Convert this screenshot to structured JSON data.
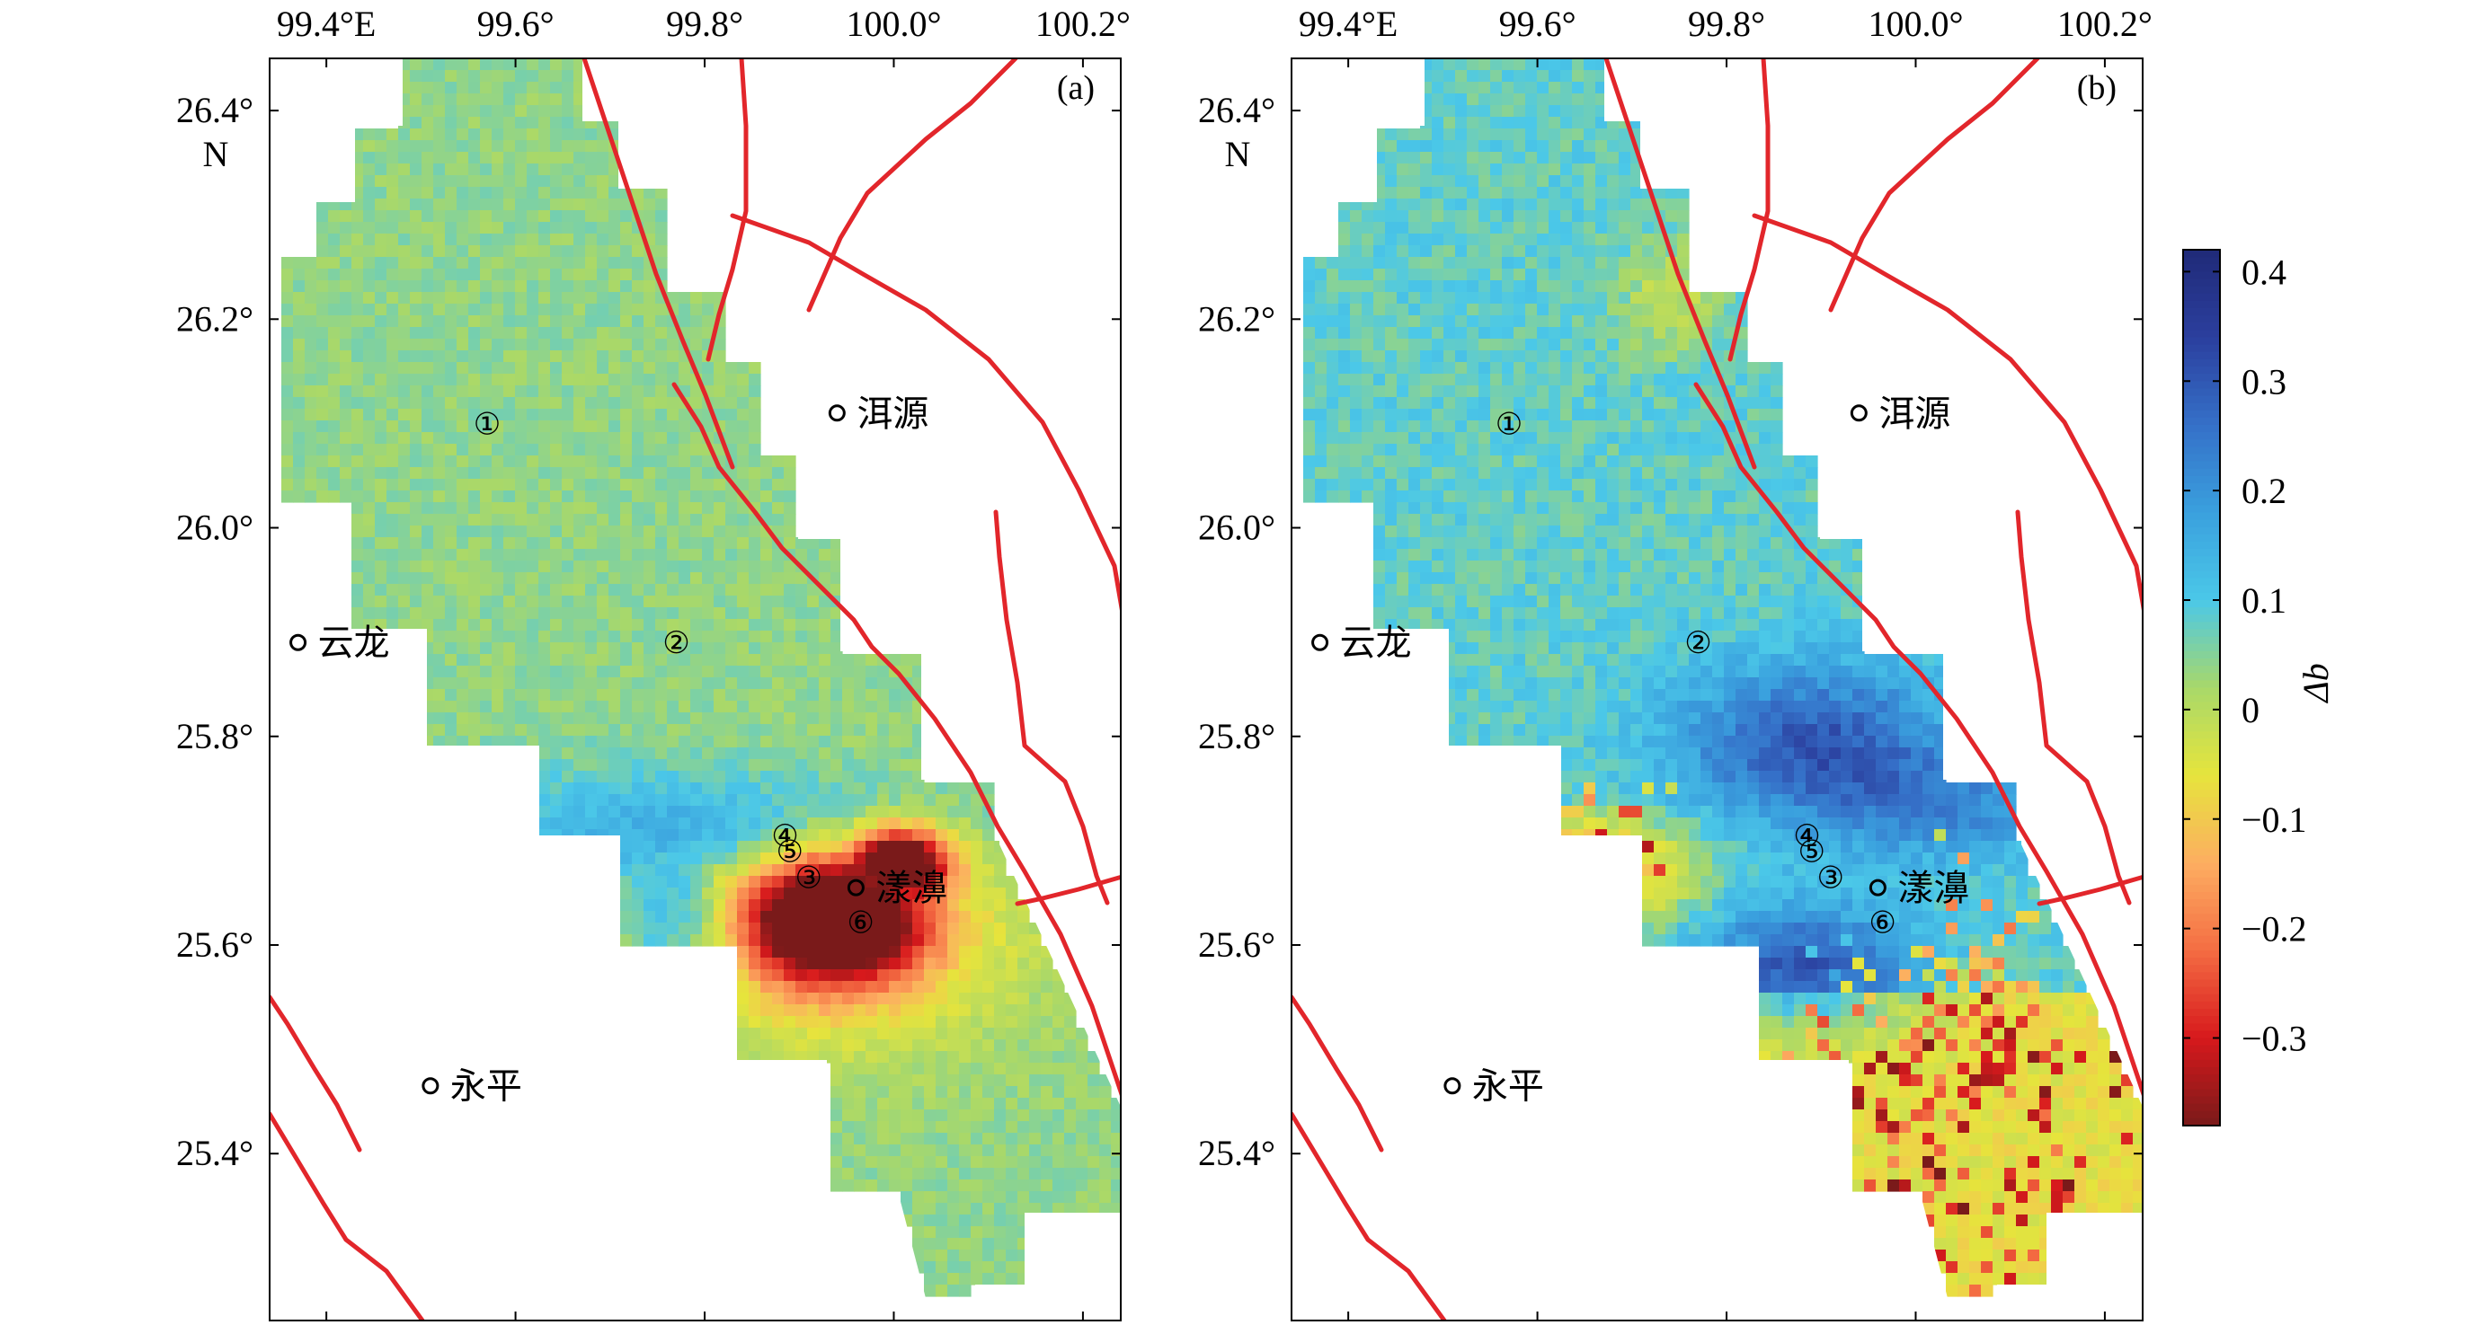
{
  "colorbar": {
    "title": "Δb",
    "ticks": [
      {
        "value": 0.4,
        "label": "0.4"
      },
      {
        "value": 0.3,
        "label": "0.3"
      },
      {
        "value": 0.2,
        "label": "0.2"
      },
      {
        "value": 0.1,
        "label": "0.1"
      },
      {
        "value": 0.0,
        "label": "0"
      },
      {
        "value": -0.1,
        "label": "−0.1"
      },
      {
        "value": -0.2,
        "label": "−0.2"
      },
      {
        "value": -0.3,
        "label": "−0.3"
      }
    ],
    "range": [
      -0.38,
      0.42
    ],
    "colors": [
      "#7a1a1a",
      "#d7191c",
      "#f46d43",
      "#fdae61",
      "#e6e43c",
      "#a8d86a",
      "#4bc8e8",
      "#3aa0de",
      "#3570c8",
      "#2b3f9e",
      "#1f2a78"
    ]
  },
  "axes": {
    "lon_ticks": [
      {
        "value": 99.4,
        "label": "99.4°E"
      },
      {
        "value": 99.6,
        "label": "99.6°"
      },
      {
        "value": 99.8,
        "label": "99.8°"
      },
      {
        "value": 100.0,
        "label": "100.0°"
      },
      {
        "value": 100.2,
        "label": "100.2°"
      }
    ],
    "lat_ticks": [
      {
        "value": 26.4,
        "label": "26.4°"
      },
      {
        "value": 26.2,
        "label": "26.2°"
      },
      {
        "value": 26.0,
        "label": "26.0°"
      },
      {
        "value": 25.8,
        "label": "25.8°"
      },
      {
        "value": 25.6,
        "label": "25.6°"
      },
      {
        "value": 25.4,
        "label": "25.4°"
      }
    ],
    "lat_unit_label": "N",
    "lon_range": [
      99.34,
      100.24
    ],
    "lat_range": [
      25.24,
      26.45
    ]
  },
  "panels": [
    {
      "id": "a",
      "label": "(a)"
    },
    {
      "id": "b",
      "label": "(b)"
    }
  ],
  "places": [
    {
      "name": "洱源",
      "lon": 99.94,
      "lat": 26.11
    },
    {
      "name": "云龙",
      "lon": 99.37,
      "lat": 25.89
    },
    {
      "name": "漾濞",
      "lon": 99.96,
      "lat": 25.655
    },
    {
      "name": "永平",
      "lon": 99.51,
      "lat": 25.465
    }
  ],
  "zones": [
    {
      "label": "①",
      "lon": 99.57,
      "lat": 26.1
    },
    {
      "label": "②",
      "lon": 99.77,
      "lat": 25.89
    },
    {
      "label": "③",
      "lon": 99.91,
      "lat": 25.665
    },
    {
      "label": "④",
      "lon": 99.885,
      "lat": 25.705
    },
    {
      "label": "⑤",
      "lon": 99.89,
      "lat": 25.69
    },
    {
      "label": "⑥",
      "lon": 99.965,
      "lat": 25.622
    }
  ]
}
